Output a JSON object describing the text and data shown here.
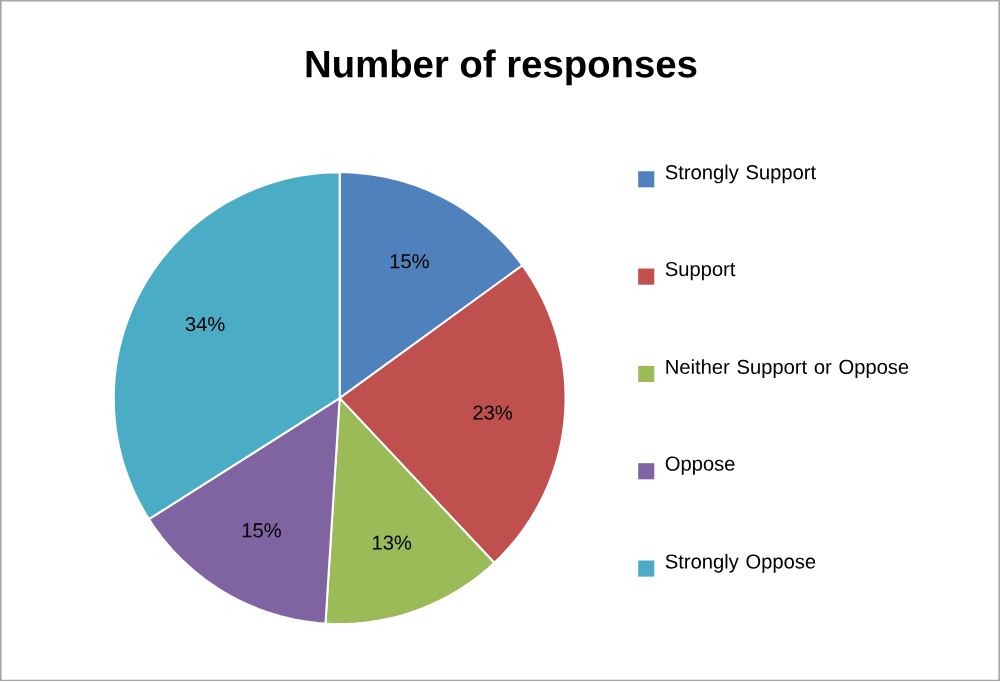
{
  "chart_data": {
    "type": "pie",
    "title": "Number of responses",
    "categories": [
      "Strongly Support",
      "Support",
      "Neither Support or Oppose",
      "Oppose",
      "Strongly Oppose"
    ],
    "values": [
      15,
      23,
      13,
      15,
      34
    ],
    "value_labels": [
      "15%",
      "23%",
      "13%",
      "15%",
      "34%"
    ],
    "colors": [
      "#4f81bd",
      "#c0504d",
      "#9bbb59",
      "#8064a2",
      "#4bacc6"
    ],
    "legend": "right"
  }
}
